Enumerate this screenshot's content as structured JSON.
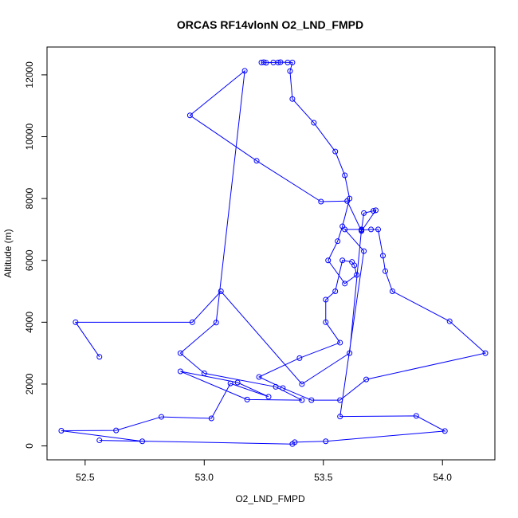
{
  "chart_data": {
    "type": "line",
    "title": "ORCAS RF14vlonN O2_LND_FMPD",
    "xlabel": "O2_LND_FMPD",
    "ylabel": "Altitude (m)",
    "xlim": [
      52.34,
      54.22
    ],
    "ylim": [
      -450,
      12900
    ],
    "x_ticks": [
      52.5,
      53.0,
      53.5,
      54.0
    ],
    "x_tick_labels": [
      "52.5",
      "53.0",
      "53.5",
      "54.0"
    ],
    "y_ticks": [
      0,
      2000,
      4000,
      6000,
      8000,
      10000,
      12000
    ],
    "y_tick_labels": [
      "0",
      "2000",
      "4000",
      "6000",
      "8000",
      "10000",
      "12000"
    ],
    "grid": false,
    "marker": "open-circle",
    "series": [
      {
        "color": "#0000ff",
        "x": [
          53.24,
          53.25,
          53.26,
          53.29,
          53.31,
          53.32,
          53.35,
          53.37,
          53.36,
          53.37,
          53.46,
          53.55,
          53.59,
          53.61,
          53.58,
          53.56,
          53.52,
          53.59,
          53.64,
          53.63,
          53.62,
          53.58,
          53.55,
          53.51,
          53.51,
          53.57,
          53.4,
          53.23,
          53.33,
          53.45,
          53.57,
          53.68,
          54.18,
          54.03,
          53.79,
          53.76,
          53.75,
          53.73,
          53.7,
          53.66,
          53.67,
          53.71,
          53.72,
          53.66,
          53.6,
          53.49,
          53.22,
          52.94,
          53.17,
          53.05,
          52.9,
          53.0,
          53.3,
          53.41,
          53.18,
          52.9,
          53.14,
          53.27,
          53.11,
          53.03,
          52.82,
          52.63,
          52.4,
          52.74,
          52.56,
          53.37,
          53.38,
          53.51,
          54.01,
          53.89,
          53.57,
          53.67,
          53.59,
          53.66,
          53.61,
          53.41,
          53.07,
          52.95,
          52.46,
          52.56
        ],
        "y": [
          12400,
          12410,
          12390,
          12400,
          12400,
          12410,
          12400,
          12400,
          12120,
          11220,
          10450,
          9520,
          8750,
          8000,
          7100,
          6620,
          6000,
          5250,
          5530,
          5840,
          5950,
          6000,
          5000,
          4730,
          4000,
          3340,
          2840,
          2230,
          1870,
          1480,
          1480,
          2150,
          3000,
          4030,
          5000,
          5650,
          6150,
          7000,
          7000,
          6980,
          7530,
          7600,
          7620,
          6950,
          7920,
          7900,
          9220,
          10690,
          12130,
          3990,
          3000,
          2350,
          1910,
          1480,
          1500,
          2410,
          2050,
          1590,
          2020,
          890,
          940,
          500,
          490,
          150,
          180,
          60,
          120,
          150,
          480,
          970,
          950,
          6300,
          7000,
          7000,
          3000,
          2000,
          5000,
          4000,
          4000,
          2880
        ]
      }
    ]
  }
}
